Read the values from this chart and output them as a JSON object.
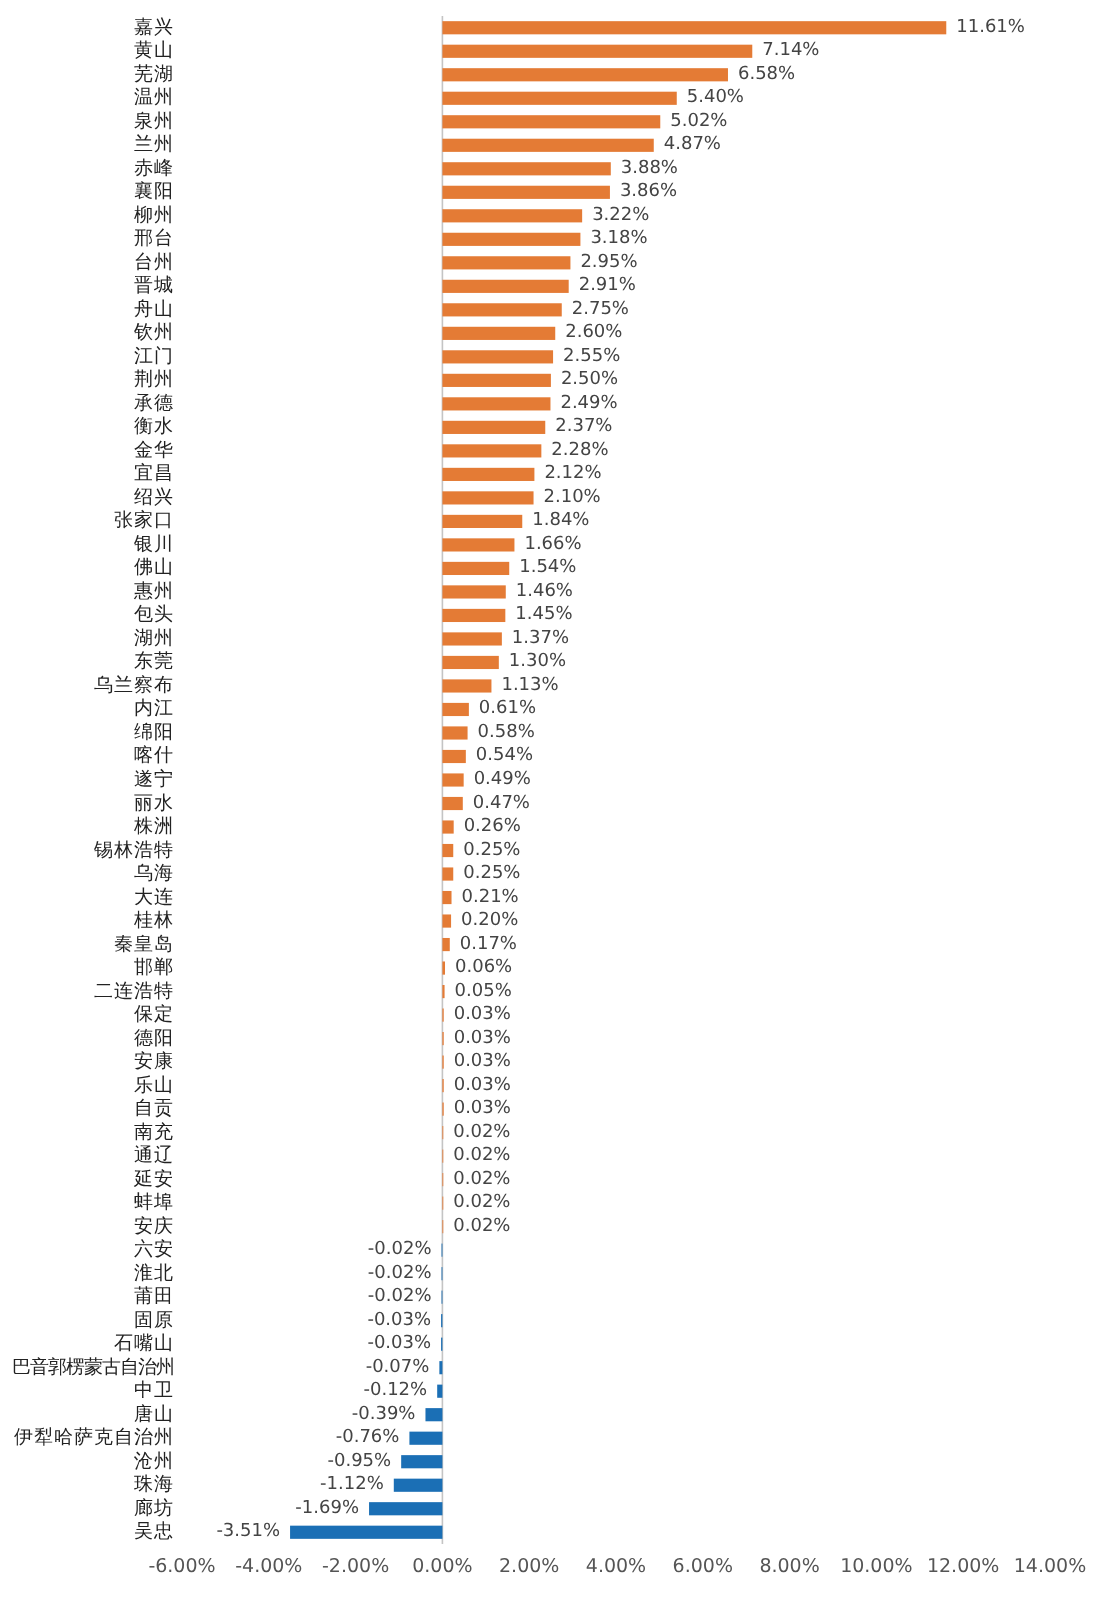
{
  "chart_data": {
    "type": "bar",
    "orientation": "horizontal",
    "categories": [
      "嘉兴",
      "黄山",
      "芜湖",
      "温州",
      "泉州",
      "兰州",
      "赤峰",
      "襄阳",
      "柳州",
      "邢台",
      "台州",
      "晋城",
      "舟山",
      "钦州",
      "江门",
      "荆州",
      "承德",
      "衡水",
      "金华",
      "宜昌",
      "绍兴",
      "张家口",
      "银川",
      "佛山",
      "惠州",
      "包头",
      "湖州",
      "东莞",
      "乌兰察布",
      "内江",
      "绵阳",
      "喀什",
      "遂宁",
      "丽水",
      "株洲",
      "锡林浩特",
      "乌海",
      "大连",
      "桂林",
      "秦皇岛",
      "邯郸",
      "二连浩特",
      "保定",
      "德阳",
      "安康",
      "乐山",
      "自贡",
      "南充",
      "通辽",
      "延安",
      "蚌埠",
      "安庆",
      "六安",
      "淮北",
      "莆田",
      "固原",
      "石嘴山",
      "巴音郭楞蒙古自治州",
      "中卫",
      "唐山",
      "伊犁哈萨克自治州",
      "沧州",
      "珠海",
      "廊坊",
      "吴忠"
    ],
    "values": [
      11.61,
      7.14,
      6.58,
      5.4,
      5.02,
      4.87,
      3.88,
      3.86,
      3.22,
      3.18,
      2.95,
      2.91,
      2.75,
      2.6,
      2.55,
      2.5,
      2.49,
      2.37,
      2.28,
      2.12,
      2.1,
      1.84,
      1.66,
      1.54,
      1.46,
      1.45,
      1.37,
      1.3,
      1.13,
      0.61,
      0.58,
      0.54,
      0.49,
      0.47,
      0.26,
      0.25,
      0.25,
      0.21,
      0.2,
      0.17,
      0.06,
      0.05,
      0.03,
      0.03,
      0.03,
      0.03,
      0.03,
      0.02,
      0.02,
      0.02,
      0.02,
      0.02,
      -0.02,
      -0.02,
      -0.02,
      -0.03,
      -0.03,
      -0.07,
      -0.12,
      -0.39,
      -0.76,
      -0.95,
      -1.12,
      -1.69,
      -3.51
    ],
    "colors": [
      "#e47b35",
      "#e47b35",
      "#e47b35",
      "#e47b35",
      "#e47b35",
      "#e47b35",
      "#e47b35",
      "#e47b35",
      "#e47b35",
      "#e47b35",
      "#e47b35",
      "#e47b35",
      "#e47b35",
      "#e47b35",
      "#e47b35",
      "#e47b35",
      "#e47b35",
      "#e47b35",
      "#e47b35",
      "#e47b35",
      "#e47b35",
      "#e47b35",
      "#e47b35",
      "#e47b35",
      "#e47b35",
      "#e47b35",
      "#e47b35",
      "#e47b35",
      "#e47b35",
      "#e47b35",
      "#e47b35",
      "#e47b35",
      "#e47b35",
      "#e47b35",
      "#e47b35",
      "#e47b35",
      "#e47b35",
      "#e47b35",
      "#e47b35",
      "#e47b35",
      "#e47b35",
      "#e47b35",
      "#e47b35",
      "#e47b35",
      "#e47b35",
      "#e47b35",
      "#e47b35",
      "#e47b35",
      "#e47b35",
      "#e47b35",
      "#e47b35",
      "#e47b35",
      "#1b6fb5",
      "#1b6fb5",
      "#1b6fb5",
      "#1b6fb5",
      "#1b6fb5",
      "#1b6fb5",
      "#1b6fb5",
      "#1b6fb5",
      "#1b6fb5",
      "#1b6fb5",
      "#1b6fb5",
      "#1b6fb5",
      "#1b6fb5"
    ],
    "value_labels": [
      "11.61%",
      "7.14%",
      "6.58%",
      "5.40%",
      "5.02%",
      "4.87%",
      "3.88%",
      "3.86%",
      "3.22%",
      "3.18%",
      "2.95%",
      "2.91%",
      "2.75%",
      "2.60%",
      "2.55%",
      "2.50%",
      "2.49%",
      "2.37%",
      "2.28%",
      "2.12%",
      "2.10%",
      "1.84%",
      "1.66%",
      "1.54%",
      "1.46%",
      "1.45%",
      "1.37%",
      "1.30%",
      "1.13%",
      "0.61%",
      "0.58%",
      "0.54%",
      "0.49%",
      "0.47%",
      "0.26%",
      "0.25%",
      "0.25%",
      "0.21%",
      "0.20%",
      "0.17%",
      "0.06%",
      "0.05%",
      "0.03%",
      "0.03%",
      "0.03%",
      "0.03%",
      "0.03%",
      "0.02%",
      "0.02%",
      "0.02%",
      "0.02%",
      "0.02%",
      "-0.02%",
      "-0.02%",
      "-0.02%",
      "-0.03%",
      "-0.03%",
      "-0.07%",
      "-0.12%",
      "-0.39%",
      "-0.76%",
      "-0.95%",
      "-1.12%",
      "-1.69%",
      "-3.51%"
    ],
    "xlim": [
      -6,
      14
    ],
    "xticks": [
      {
        "value": -6,
        "label": "-6.00%"
      },
      {
        "value": -4,
        "label": "-4.00%"
      },
      {
        "value": -2,
        "label": "-2.00%"
      },
      {
        "value": 0,
        "label": "0.00%"
      },
      {
        "value": 2,
        "label": "2.00%"
      },
      {
        "value": 4,
        "label": "4.00%"
      },
      {
        "value": 6,
        "label": "6.00%"
      },
      {
        "value": 8,
        "label": "8.00%"
      },
      {
        "value": 10,
        "label": "10.00%"
      },
      {
        "value": 12,
        "label": "12.00%"
      },
      {
        "value": 14,
        "label": "14.00%"
      }
    ]
  }
}
